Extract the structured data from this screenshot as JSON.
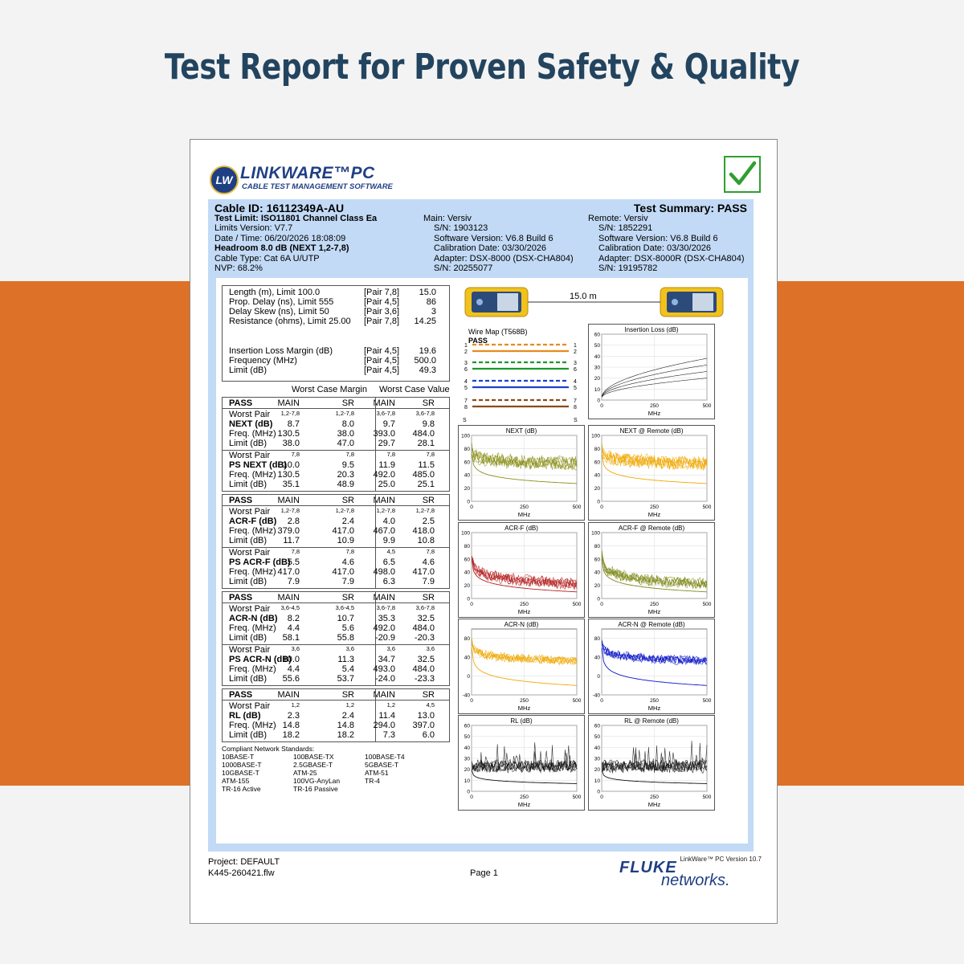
{
  "banner": {
    "title": "Test Report for Proven Safety & Quality"
  },
  "colors": {
    "orange": "#dd7127",
    "frame": "#c2daf5",
    "navy": "#1f3f84",
    "title": "#23445f",
    "check": "#2f9f2f"
  },
  "logo": {
    "badge": "LW",
    "name": "LINKWARE™PC",
    "tag": "CABLE TEST MANAGEMENT SOFTWARE"
  },
  "header": {
    "cable_id": "Cable ID: 16112349A-AU",
    "summary": "Test Summary: PASS",
    "left": [
      "Test Limit: ISO11801 Channel Class Ea",
      "Limits Version: V7.7",
      "Date / Time: 06/20/2026  18:08:09",
      "Headroom 8.0 dB (NEXT 1,2-7,8)",
      "Cable Type: Cat 6A U/UTP",
      "NVP: 68.2%"
    ],
    "main": [
      "Main: Versiv",
      "S/N: 1903123",
      "Software Version: V6.8 Build 6",
      "Calibration Date: 03/30/2026",
      "Adapter: DSX-8000 (DSX-CHA804)",
      "S/N: 20255077"
    ],
    "remote": [
      "Remote: Versiv",
      "S/N: 1852291",
      "Software Version: V6.8 Build 6",
      "Calibration Date: 03/30/2026",
      "Adapter: DSX-8000R (DSX-CHA804)",
      "S/N: 19195782"
    ]
  },
  "summary_rows": [
    {
      "label": "Length (m), Limit 100.0",
      "pair": "[Pair 7,8]",
      "value": "15.0"
    },
    {
      "label": "Prop. Delay (ns), Limit 555",
      "pair": "[Pair 4,5]",
      "value": "86"
    },
    {
      "label": "Delay Skew (ns), Limit 50",
      "pair": "[Pair 3,6]",
      "value": "3"
    },
    {
      "label": "Resistance (ohms), Limit 25.00",
      "pair": "[Pair 7,8]",
      "value": "14.25"
    },
    {
      "label": "Insertion Loss Margin (dB)",
      "pair": "[Pair 4,5]",
      "value": "19.6"
    },
    {
      "label": "Frequency (MHz)",
      "pair": "[Pair 4,5]",
      "value": "500.0"
    },
    {
      "label": "Limit (dB)",
      "pair": "[Pair 4,5]",
      "value": "49.3"
    }
  ],
  "worst_headers": {
    "margin": "Worst Case Margin",
    "value": "Worst Case Value"
  },
  "col_headers": [
    "PASS",
    "MAIN",
    "SR",
    "MAIN",
    "SR"
  ],
  "sections": [
    {
      "groups": [
        {
          "pairs": [
            "1,2-7,8",
            "1,2-7,8",
            "3,6-7,8",
            "3,6-7,8"
          ],
          "name": "NEXT (dB)",
          "vals": [
            "8.7",
            "8.0",
            "9.7",
            "9.8"
          ],
          "freq": [
            "130.5",
            "38.0",
            "393.0",
            "484.0"
          ],
          "limit": [
            "38.0",
            "47.0",
            "29.7",
            "28.1"
          ]
        },
        {
          "pairs": [
            "7,8",
            "7,8",
            "7,8",
            "7,8"
          ],
          "name": "PS NEXT (dB)",
          "vals": [
            "10.0",
            "9.5",
            "11.9",
            "11.5"
          ],
          "freq": [
            "130.5",
            "20.3",
            "492.0",
            "485.0"
          ],
          "limit": [
            "35.1",
            "48.9",
            "25.0",
            "25.1"
          ]
        }
      ]
    },
    {
      "groups": [
        {
          "pairs": [
            "1,2-7,8",
            "1,2-7,8",
            "1,2-7,8",
            "1,2-7,8"
          ],
          "name": "ACR-F (dB)",
          "vals": [
            "2.8",
            "2.4",
            "4.0",
            "2.5"
          ],
          "freq": [
            "379.0",
            "417.0",
            "467.0",
            "418.0"
          ],
          "limit": [
            "11.7",
            "10.9",
            "9.9",
            "10.8"
          ]
        },
        {
          "pairs": [
            "7,8",
            "7,8",
            "4,5",
            "7,8"
          ],
          "name": "PS ACR-F (dB)",
          "vals": [
            "5.5",
            "4.6",
            "6.5",
            "4.6"
          ],
          "freq": [
            "417.0",
            "417.0",
            "498.0",
            "417.0"
          ],
          "limit": [
            "7.9",
            "7.9",
            "6.3",
            "7.9"
          ]
        }
      ]
    },
    {
      "groups": [
        {
          "pairs": [
            "3,6-4,5",
            "3,6-4,5",
            "3,6-7,8",
            "3,6-7,8"
          ],
          "name": "ACR-N (dB)",
          "vals": [
            "8.2",
            "10.7",
            "35.3",
            "32.5"
          ],
          "freq": [
            "4.4",
            "5.6",
            "492.0",
            "484.0"
          ],
          "limit": [
            "58.1",
            "55.8",
            "-20.9",
            "-20.3"
          ]
        },
        {
          "pairs": [
            "3,6",
            "3,6",
            "3,6",
            "3,6"
          ],
          "name": "PS ACR-N (dB)",
          "vals": [
            "10.0",
            "11.3",
            "34.7",
            "32.5"
          ],
          "freq": [
            "4.4",
            "5.4",
            "493.0",
            "484.0"
          ],
          "limit": [
            "55.6",
            "53.7",
            "-24.0",
            "-23.3"
          ]
        }
      ]
    },
    {
      "groups": [
        {
          "pairs": [
            "1,2",
            "1,2",
            "1,2",
            "4,5"
          ],
          "name": "RL (dB)",
          "vals": [
            "2.3",
            "2.4",
            "11.4",
            "13.0"
          ],
          "freq": [
            "14.8",
            "14.8",
            "294.0",
            "397.0"
          ],
          "limit": [
            "18.2",
            "18.2",
            "7.3",
            "6.0"
          ]
        }
      ]
    }
  ],
  "row_labels": {
    "worst_pair": "Worst Pair",
    "freq": "Freq. (MHz)",
    "limit": "Limit (dB)"
  },
  "standards": {
    "title": "Compliant Network Standards:",
    "items": [
      "10BASE-T",
      "100BASE-TX",
      "100BASE-T4",
      "1000BASE-T",
      "2.5GBASE-T",
      "5GBASE-T",
      "10GBASE-T",
      "ATM-25",
      "ATM-51",
      "ATM-155",
      "100VG-AnyLan",
      "TR-4",
      "TR-16 Active",
      "TR-16 Passive"
    ]
  },
  "cable_length": "15.0 m",
  "wiremap": {
    "title": "Wire Map (T568B)",
    "status": "PASS",
    "pins": [
      "1",
      "2",
      "3",
      "6",
      "4",
      "5",
      "7",
      "8"
    ],
    "shield": "S",
    "colors": [
      "#e88a1c",
      "#e88a1c",
      "#1a9a2a",
      "#1a9a2a",
      "#1f3fd0",
      "#1f3fd0",
      "#8a4a1a",
      "#8a4a1a"
    ]
  },
  "charts": [
    {
      "title": "Insertion Loss (dB)",
      "xlabel": "MHz",
      "xticks": [
        "0",
        "250",
        "500"
      ],
      "yticks": [
        "0",
        "10",
        "20",
        "30",
        "40",
        "50",
        "60"
      ],
      "ylim": [
        0,
        60
      ],
      "color": "#000000"
    },
    {
      "title": "NEXT (dB)",
      "xlabel": "MHz",
      "xticks": [
        "0",
        "250",
        "500"
      ],
      "yticks": [
        "0",
        "20",
        "40",
        "60",
        "80",
        "100"
      ],
      "ylim": [
        0,
        100
      ],
      "color": "#8a8f17"
    },
    {
      "title": "NEXT @ Remote (dB)",
      "xlabel": "MHz",
      "xticks": [
        "0",
        "250",
        "500"
      ],
      "yticks": [
        "0",
        "20",
        "40",
        "60",
        "80",
        "100"
      ],
      "ylim": [
        0,
        100
      ],
      "color": "#f0a800"
    },
    {
      "title": "ACR-F (dB)",
      "xlabel": "MHz",
      "xticks": [
        "0",
        "250",
        "500"
      ],
      "yticks": [
        "0",
        "20",
        "40",
        "60",
        "80",
        "100"
      ],
      "ylim": [
        0,
        100
      ],
      "color": "#b52020"
    },
    {
      "title": "ACR-F @ Remote (dB)",
      "xlabel": "MHz",
      "xticks": [
        "0",
        "250",
        "500"
      ],
      "yticks": [
        "0",
        "20",
        "40",
        "60",
        "80",
        "100"
      ],
      "ylim": [
        0,
        100
      ],
      "color": "#7f8a1a"
    },
    {
      "title": "ACR-N (dB)",
      "xlabel": "MHz",
      "xticks": [
        "0",
        "250",
        "500"
      ],
      "yticks": [
        "-40",
        "0",
        "40",
        "80"
      ],
      "ylim": [
        -40,
        100
      ],
      "color": "#f0a800"
    },
    {
      "title": "ACR-N @ Remote (dB)",
      "xlabel": "MHz",
      "xticks": [
        "0",
        "250",
        "500"
      ],
      "yticks": [
        "-40",
        "0",
        "40",
        "80"
      ],
      "ylim": [
        -40,
        100
      ],
      "color": "#0a14c8"
    },
    {
      "title": "RL (dB)",
      "xlabel": "MHz",
      "xticks": [
        "0",
        "250",
        "500"
      ],
      "yticks": [
        "0",
        "10",
        "20",
        "30",
        "40",
        "50",
        "60"
      ],
      "ylim": [
        0,
        60
      ],
      "color": "#111111"
    },
    {
      "title": "RL @ Remote (dB)",
      "xlabel": "MHz",
      "xticks": [
        "0",
        "250",
        "500"
      ],
      "yticks": [
        "0",
        "10",
        "20",
        "30",
        "40",
        "50",
        "60"
      ],
      "ylim": [
        0,
        60
      ],
      "color": "#111111"
    }
  ],
  "version": "LinkWare™ PC Version 10.7",
  "footer": {
    "project": "Project: DEFAULT",
    "file": "K445-260421.flw",
    "page": "Page 1",
    "brand1": "FLUKE",
    "brand2": "networks."
  }
}
